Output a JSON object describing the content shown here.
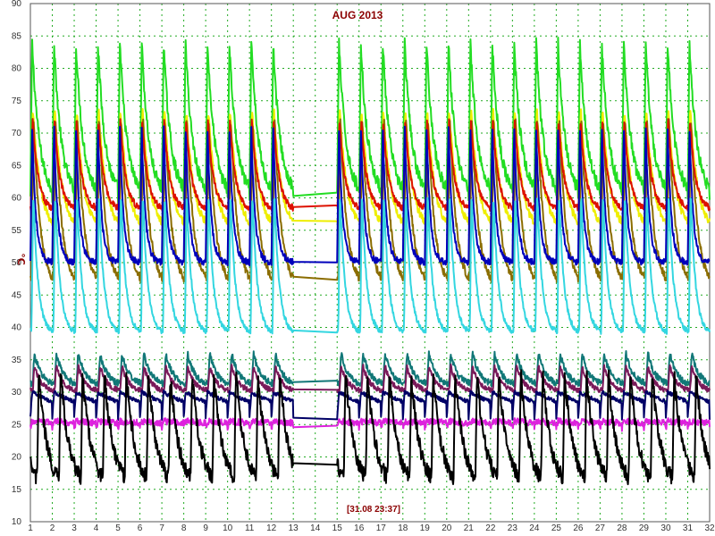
{
  "chart_data": {
    "type": "line",
    "title": "AUG 2013",
    "ylabel": "°C",
    "timestamp": "[31.08 23:37]",
    "xlim": [
      1,
      32
    ],
    "ylim": [
      10,
      90
    ],
    "x_ticks": [
      "1",
      "2",
      "3",
      "4",
      "5",
      "6",
      "7",
      "8",
      "9",
      "10",
      "11",
      "12",
      "13",
      "14",
      "15",
      "16",
      "17",
      "18",
      "19",
      "20",
      "21",
      "22",
      "23",
      "24",
      "25",
      "26",
      "27",
      "28",
      "29",
      "30",
      "31",
      "32"
    ],
    "y_ticks": [
      "10",
      "15",
      "20",
      "25",
      "30",
      "35",
      "40",
      "45",
      "50",
      "55",
      "60",
      "65",
      "70",
      "75",
      "80",
      "85",
      "90"
    ],
    "grid": true,
    "legend": "none",
    "gaps": [
      [
        13,
        15
      ]
    ],
    "series": [
      {
        "color": "#22dd22",
        "peak": 84,
        "trough": 60,
        "decay": 3.0,
        "noise": 1.0,
        "shift": 0.0
      },
      {
        "color": "#eeee00",
        "peak": 74,
        "trough": 55,
        "decay": 3.0,
        "noise": 0.6,
        "shift": 0.03
      },
      {
        "color": "#8b6d00",
        "peak": 73,
        "trough": 46,
        "decay": 3.2,
        "noise": 0.6,
        "shift": 0.05
      },
      {
        "color": "#dd1100",
        "peak": 72,
        "trough": 58,
        "decay": 3.8,
        "noise": 0.5,
        "shift": 0.02
      },
      {
        "color": "#0000bb",
        "peak": 71,
        "trough": 50,
        "decay": 6.0,
        "noise": 0.5,
        "shift": 0.0
      },
      {
        "color": "#33d6e0",
        "peak": 61,
        "trough": 39,
        "decay": 4.5,
        "noise": 0.4,
        "shift": 0.05
      },
      {
        "color": "#117777",
        "peak": 36,
        "trough": 31,
        "decay": 3.0,
        "noise": 0.5,
        "shift": 0.1
      },
      {
        "color": "#7a1a5a",
        "peak": 34,
        "trough": 30,
        "decay": 3.0,
        "noise": 0.4,
        "shift": 0.1
      },
      {
        "color": "#000066",
        "peak": 30,
        "trough": 26,
        "decay": 0.5,
        "noise": 0.3,
        "shift": 0.0
      },
      {
        "color": "#dd22dd",
        "peak": 25.5,
        "trough": 24.5,
        "decay": 0.3,
        "noise": 0.5,
        "shift": 0.0
      },
      {
        "color": "#000000",
        "peak": 33,
        "trough": 15,
        "decay": 2.5,
        "noise": 1.2,
        "shift": 0.3
      }
    ]
  }
}
